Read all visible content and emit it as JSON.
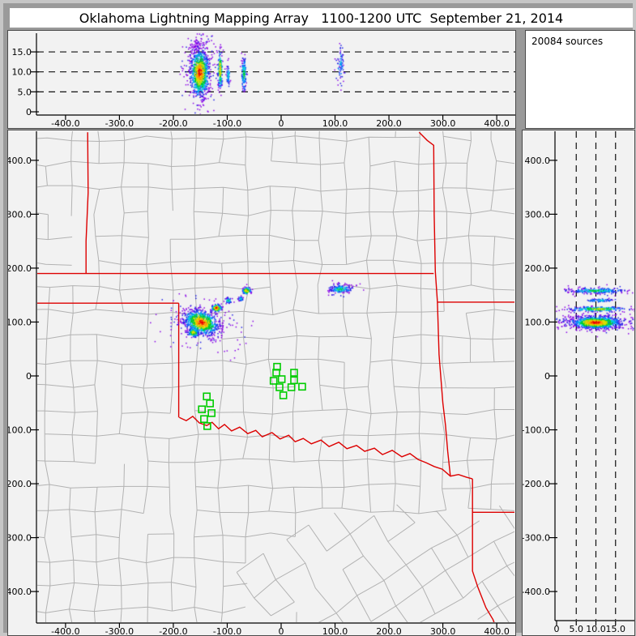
{
  "title": "Oklahoma Lightning Mapping Array   1100-1200 UTC  September 21, 2014",
  "sources": {
    "count": 20084,
    "label": "20084 sources"
  },
  "colors": {
    "page_bg": "#9a9a9a",
    "frame": "#c6c6c6",
    "panel_bg": "#f2f2f2",
    "panel_border": "#4a4a4a",
    "sources_box_bg": "#ffffff",
    "axis": "#000000",
    "grid_dash": "#111111",
    "county_line": "#b2b2b2",
    "state_border": "#dd0000",
    "station_marker": "#00cc00",
    "density_ramp": [
      "#8800e8",
      "#2222e8",
      "#0077ff",
      "#00ccdd",
      "#00cc22",
      "#dddd00",
      "#ff9900",
      "#e80000"
    ]
  },
  "axes": {
    "ew": {
      "ticks": [
        -400,
        -300,
        -200,
        -100,
        0,
        100,
        200,
        300,
        400
      ],
      "labels": [
        "-400.0",
        "-300.0",
        "-200.0",
        "-100.0",
        "0",
        "100.0",
        "200.0",
        "300.0",
        "400.0"
      ]
    },
    "ns": {
      "ticks": [
        400,
        300,
        200,
        100,
        0,
        -100,
        -200,
        -300,
        -400
      ],
      "labels": [
        "400.0",
        "300.0",
        "200.0",
        "100.0",
        "0",
        "-100.0",
        "-200.0",
        "-300.0",
        "-400.0"
      ]
    },
    "alt": {
      "ticks": [
        0,
        5,
        10,
        15
      ],
      "labels": [
        "0",
        "5.0",
        "10.0",
        "15.0"
      ],
      "dashed": [
        5,
        10,
        15
      ]
    }
  },
  "chart_data": {
    "type": "scatter",
    "description": "Lightning VHF source density: top panel altitude(km) vs east-west(km), main panel plan view (km E-W vs km N-S) over county map, right panel north-south(km) vs altitude(km). Dashed altitude gridlines at 5, 10, 15 km.",
    "panels": {
      "ew_alt": {
        "x_range": [
          -455,
          435
        ],
        "y_range": [
          -0.8,
          19.7
        ],
        "ylabel_ticks": "alt"
      },
      "plan": {
        "x_range": [
          -455,
          435
        ],
        "y_range": [
          -455,
          455
        ]
      },
      "alt_ns": {
        "x_range": [
          -0.4,
          20.2
        ],
        "y_range": [
          -455,
          455
        ]
      }
    },
    "clusters": {
      "plan": [
        {
          "x": -148,
          "y": 99,
          "sx": 16,
          "sy": 10,
          "n": 760,
          "max": 7,
          "tilt": -18
        },
        {
          "x": -148,
          "y": 99,
          "sx": 33,
          "sy": 21,
          "n": 270,
          "max": 1,
          "tilt": -15
        },
        {
          "x": -163,
          "y": 80,
          "sx": 5,
          "sy": 4,
          "n": 110,
          "max": 6
        },
        {
          "x": -120,
          "y": 126,
          "sx": 4.5,
          "sy": 3.5,
          "n": 115,
          "max": 7
        },
        {
          "x": -98,
          "y": 140,
          "sx": 3,
          "sy": 2.5,
          "n": 45,
          "max": 4
        },
        {
          "x": -75,
          "y": 143,
          "sx": 2.5,
          "sy": 2,
          "n": 35,
          "max": 3
        },
        {
          "x": -64,
          "y": 158,
          "sx": 4,
          "sy": 3,
          "n": 95,
          "max": 6
        },
        {
          "x": 110,
          "y": 161,
          "sx": 10,
          "sy": 3.5,
          "n": 130,
          "max": 4
        },
        {
          "x": 110,
          "y": 161,
          "sx": 15,
          "sy": 6,
          "n": 60,
          "max": 1
        }
      ],
      "ew_alt": [
        {
          "x": -151,
          "y": 9.8,
          "sx": 8.5,
          "sy": 2.9,
          "n": 820,
          "max": 7
        },
        {
          "x": -151,
          "y": 11,
          "sx": 14,
          "sy": 4.4,
          "n": 300,
          "max": 1
        },
        {
          "x": -157,
          "y": 16.3,
          "sx": 6,
          "sy": 1.6,
          "n": 60,
          "max": 0
        },
        {
          "x": -113,
          "y": 10.5,
          "sx": 2.2,
          "sy": 2.4,
          "n": 155,
          "max": 6
        },
        {
          "x": -98,
          "y": 9.2,
          "sx": 1.6,
          "sy": 1.5,
          "n": 60,
          "max": 3
        },
        {
          "x": -69,
          "y": 9.5,
          "sx": 2.2,
          "sy": 2.1,
          "n": 130,
          "max": 4
        },
        {
          "x": 110,
          "y": 11.5,
          "sx": 4,
          "sy": 2.7,
          "n": 60,
          "max": 2
        },
        {
          "x": 111,
          "y": 12.5,
          "sx": 1.5,
          "sy": 1.2,
          "n": 14,
          "max": 3
        }
      ],
      "alt_ns": [
        {
          "x": 10,
          "y": 99,
          "sx": 3.1,
          "sy": 5.4,
          "n": 840,
          "max": 7
        },
        {
          "x": 10,
          "y": 100,
          "sx": 5.4,
          "sy": 9.5,
          "n": 300,
          "max": 1
        },
        {
          "x": 10.5,
          "y": 124,
          "sx": 3.6,
          "sy": 2.3,
          "n": 235,
          "max": 5
        },
        {
          "x": 11,
          "y": 140,
          "sx": 2.0,
          "sy": 1.6,
          "n": 70,
          "max": 3
        },
        {
          "x": 10,
          "y": 158,
          "sx": 3.3,
          "sy": 2.2,
          "n": 195,
          "max": 4
        },
        {
          "x": 10,
          "y": 158,
          "sx": 6,
          "sy": 4,
          "n": 75,
          "max": 1
        }
      ]
    },
    "stations_km": [
      [
        -7.5,
        17
      ],
      [
        -9,
        6
      ],
      [
        -14,
        -9
      ],
      [
        1,
        -6
      ],
      [
        -3,
        -21
      ],
      [
        24,
        6
      ],
      [
        24,
        -8
      ],
      [
        19,
        -21
      ],
      [
        39,
        -20
      ],
      [
        4,
        -36
      ],
      [
        -138,
        -38
      ],
      [
        -132,
        -51
      ],
      [
        -147,
        -62
      ],
      [
        -129,
        -69
      ],
      [
        -143,
        -80
      ],
      [
        -137,
        -93
      ]
    ],
    "state_borders_km": {
      "co_ks_vertical": [
        [
          -359,
          452
        ],
        [
          -358,
          340
        ],
        [
          -362,
          250
        ],
        [
          -362,
          190
        ]
      ],
      "kansas_south_37N": [
        [
          -458,
          190
        ],
        [
          283,
          190
        ]
      ],
      "east_border": [
        [
          256,
          452
        ],
        [
          271,
          437
        ],
        [
          283,
          428
        ],
        [
          284,
          300
        ],
        [
          286,
          194
        ],
        [
          290,
          137
        ],
        [
          293,
          40
        ],
        [
          295,
          13
        ],
        [
          300,
          -50
        ],
        [
          305,
          -92
        ],
        [
          309,
          -140
        ],
        [
          314,
          -186
        ]
      ],
      "mo_ar_36p5N": [
        [
          290,
          137
        ],
        [
          448,
          137
        ]
      ],
      "panhandle_south": [
        [
          -458,
          135
        ],
        [
          -190,
          135
        ]
      ],
      "tx_ok_100W": [
        [
          -190,
          135
        ],
        [
          -190,
          -77
        ]
      ],
      "red_river": [
        [
          -189,
          -77
        ],
        [
          -176,
          -83
        ],
        [
          -164,
          -75
        ],
        [
          -152,
          -87
        ],
        [
          -138,
          -92
        ],
        [
          -128,
          -86
        ],
        [
          -116,
          -98
        ],
        [
          -105,
          -90
        ],
        [
          -92,
          -102
        ],
        [
          -77,
          -95
        ],
        [
          -62,
          -107
        ],
        [
          -47,
          -101
        ],
        [
          -35,
          -113
        ],
        [
          -17,
          -105
        ],
        [
          -2,
          -117
        ],
        [
          14,
          -110
        ],
        [
          26,
          -122
        ],
        [
          41,
          -116
        ],
        [
          56,
          -126
        ],
        [
          74,
          -119
        ],
        [
          89,
          -131
        ],
        [
          107,
          -123
        ],
        [
          122,
          -135
        ],
        [
          140,
          -129
        ],
        [
          155,
          -140
        ],
        [
          173,
          -134
        ],
        [
          188,
          -146
        ],
        [
          206,
          -138
        ],
        [
          224,
          -150
        ],
        [
          239,
          -144
        ],
        [
          254,
          -155
        ],
        [
          269,
          -161
        ],
        [
          284,
          -168
        ],
        [
          299,
          -173
        ],
        [
          314,
          -186
        ],
        [
          329,
          -183
        ],
        [
          344,
          -188
        ],
        [
          355,
          -191
        ]
      ],
      "ar_tx_vertical": [
        [
          355,
          -191
        ],
        [
          355,
          -362
        ],
        [
          365,
          -392
        ],
        [
          380,
          -430
        ],
        [
          393,
          -452
        ],
        [
          398,
          -465
        ]
      ],
      "ar_la_horizontal": [
        [
          355,
          -253
        ],
        [
          448,
          -253
        ]
      ]
    },
    "county_grid": {
      "spacing_km": 46,
      "jitter_km": 11,
      "skip_prob": 0.13,
      "rotated_patch_deg": 33
    }
  }
}
